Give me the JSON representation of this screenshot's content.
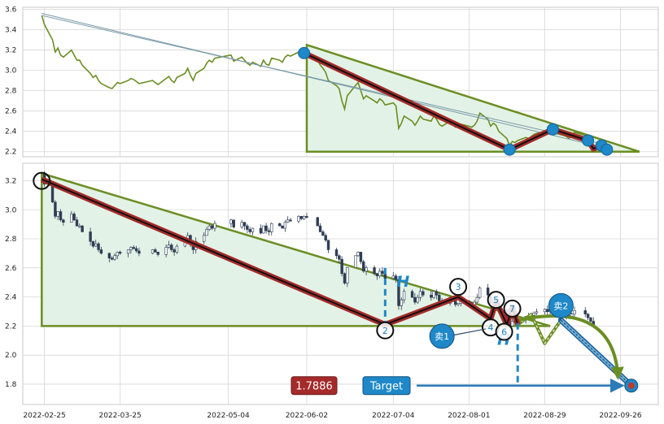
{
  "colors": {
    "triangle_line": "#6b8e23",
    "triangle_fill": "#e3f2e6",
    "wave_outer": "#a52a2a",
    "wave_inner": "#111111",
    "marker_blue": "#1e88c8",
    "price_line": "#6b8e23",
    "candle": "#2f3e55",
    "grid": "#d6d6d6",
    "arrow_blue": "#2b7bb9",
    "price_box": "#a52a2a"
  },
  "chart_data": [
    {
      "type": "line",
      "panel": "top",
      "ylim": [
        2.15,
        3.62
      ],
      "yticks": [
        2.2,
        2.4,
        2.6,
        2.8,
        3.0,
        3.2,
        3.4,
        3.6
      ],
      "xlim": [
        "2022-02-17",
        "2022-10-10"
      ],
      "price_series": [
        [
          "2022-02-24",
          3.54
        ],
        [
          "2022-02-25",
          3.45
        ],
        [
          "2022-02-28",
          3.3
        ],
        [
          "2022-03-01",
          3.18
        ],
        [
          "2022-03-02",
          3.22
        ],
        [
          "2022-03-03",
          3.15
        ],
        [
          "2022-03-04",
          3.13
        ],
        [
          "2022-03-07",
          3.2
        ],
        [
          "2022-03-08",
          3.15
        ],
        [
          "2022-03-09",
          3.1
        ],
        [
          "2022-03-10",
          3.1
        ],
        [
          "2022-03-11",
          3.05
        ],
        [
          "2022-03-14",
          2.97
        ],
        [
          "2022-03-15",
          2.93
        ],
        [
          "2022-03-16",
          2.95
        ],
        [
          "2022-03-17",
          2.9
        ],
        [
          "2022-03-18",
          2.87
        ],
        [
          "2022-03-21",
          2.83
        ],
        [
          "2022-03-22",
          2.82
        ],
        [
          "2022-03-23",
          2.85
        ],
        [
          "2022-03-24",
          2.88
        ],
        [
          "2022-03-25",
          2.87
        ],
        [
          "2022-03-28",
          2.9
        ],
        [
          "2022-03-29",
          2.92
        ],
        [
          "2022-03-30",
          2.91
        ],
        [
          "2022-03-31",
          2.89
        ],
        [
          "2022-04-01",
          2.87
        ],
        [
          "2022-04-06",
          2.9
        ],
        [
          "2022-04-07",
          2.88
        ],
        [
          "2022-04-08",
          2.86
        ],
        [
          "2022-04-11",
          2.92
        ],
        [
          "2022-04-12",
          2.94
        ],
        [
          "2022-04-13",
          2.9
        ],
        [
          "2022-04-14",
          2.88
        ],
        [
          "2022-04-15",
          2.93
        ],
        [
          "2022-04-18",
          2.97
        ],
        [
          "2022-04-19",
          3.02
        ],
        [
          "2022-04-20",
          2.95
        ],
        [
          "2022-04-21",
          2.9
        ],
        [
          "2022-04-22",
          2.97
        ],
        [
          "2022-04-25",
          3.02
        ],
        [
          "2022-04-26",
          3.07
        ],
        [
          "2022-04-27",
          3.1
        ],
        [
          "2022-04-28",
          3.08
        ],
        [
          "2022-04-29",
          3.12
        ],
        [
          "2022-05-05",
          3.15
        ],
        [
          "2022-05-06",
          3.09
        ],
        [
          "2022-05-09",
          3.13
        ],
        [
          "2022-05-10",
          3.1
        ],
        [
          "2022-05-11",
          3.07
        ],
        [
          "2022-05-12",
          3.05
        ],
        [
          "2022-05-13",
          3.08
        ],
        [
          "2022-05-16",
          3.04
        ],
        [
          "2022-05-17",
          3.1
        ],
        [
          "2022-05-18",
          3.06
        ],
        [
          "2022-05-19",
          3.05
        ],
        [
          "2022-05-20",
          3.12
        ],
        [
          "2022-05-23",
          3.1
        ],
        [
          "2022-05-24",
          3.08
        ],
        [
          "2022-05-25",
          3.13
        ],
        [
          "2022-05-26",
          3.15
        ],
        [
          "2022-05-27",
          3.14
        ],
        [
          "2022-05-30",
          3.18
        ],
        [
          "2022-05-31",
          3.16
        ],
        [
          "2022-06-01",
          3.18
        ],
        [
          "2022-06-02",
          3.17
        ],
        [
          "2022-06-06",
          3.1
        ],
        [
          "2022-06-07",
          3.05
        ],
        [
          "2022-06-08",
          3.02
        ],
        [
          "2022-06-09",
          2.98
        ],
        [
          "2022-06-10",
          2.9
        ],
        [
          "2022-06-13",
          2.85
        ],
        [
          "2022-06-14",
          2.82
        ],
        [
          "2022-06-15",
          2.7
        ],
        [
          "2022-06-16",
          2.62
        ],
        [
          "2022-06-17",
          2.75
        ],
        [
          "2022-06-20",
          2.85
        ],
        [
          "2022-06-21",
          2.88
        ],
        [
          "2022-06-22",
          2.8
        ],
        [
          "2022-06-23",
          2.72
        ],
        [
          "2022-06-24",
          2.75
        ],
        [
          "2022-06-27",
          2.7
        ],
        [
          "2022-06-28",
          2.68
        ],
        [
          "2022-06-29",
          2.72
        ],
        [
          "2022-06-30",
          2.7
        ],
        [
          "2022-07-01",
          2.66
        ],
        [
          "2022-07-04",
          2.68
        ],
        [
          "2022-07-05",
          2.65
        ],
        [
          "2022-07-06",
          2.43
        ],
        [
          "2022-07-07",
          2.48
        ],
        [
          "2022-07-08",
          2.55
        ],
        [
          "2022-07-11",
          2.5
        ],
        [
          "2022-07-12",
          2.46
        ],
        [
          "2022-07-13",
          2.5
        ],
        [
          "2022-07-14",
          2.55
        ],
        [
          "2022-07-15",
          2.52
        ],
        [
          "2022-07-18",
          2.5
        ],
        [
          "2022-07-19",
          2.55
        ],
        [
          "2022-07-20",
          2.52
        ],
        [
          "2022-07-21",
          2.47
        ],
        [
          "2022-07-22",
          2.45
        ],
        [
          "2022-07-25",
          2.5
        ],
        [
          "2022-07-26",
          2.47
        ],
        [
          "2022-07-27",
          2.44
        ],
        [
          "2022-07-28",
          2.45
        ],
        [
          "2022-07-29",
          2.47
        ],
        [
          "2022-08-01",
          2.45
        ],
        [
          "2022-08-02",
          2.44
        ],
        [
          "2022-08-03",
          2.46
        ],
        [
          "2022-08-04",
          2.5
        ],
        [
          "2022-08-05",
          2.58
        ],
        [
          "2022-08-08",
          2.52
        ],
        [
          "2022-08-09",
          2.45
        ],
        [
          "2022-08-10",
          2.48
        ],
        [
          "2022-08-11",
          2.46
        ],
        [
          "2022-08-12",
          2.4
        ],
        [
          "2022-08-15",
          2.33
        ],
        [
          "2022-08-16",
          2.26
        ],
        [
          "2022-08-17",
          2.3
        ],
        [
          "2022-08-18",
          2.29
        ],
        [
          "2022-08-19",
          2.31
        ],
        [
          "2022-08-22",
          2.34
        ],
        [
          "2022-08-23",
          2.33
        ],
        [
          "2022-08-24",
          2.35
        ],
        [
          "2022-08-25",
          2.37
        ],
        [
          "2022-08-26",
          2.38
        ],
        [
          "2022-08-29",
          2.4
        ],
        [
          "2022-08-30",
          2.38
        ],
        [
          "2022-08-31",
          2.42
        ],
        [
          "2022-09-01",
          2.4
        ],
        [
          "2022-09-02",
          2.38
        ],
        [
          "2022-09-05",
          2.36
        ],
        [
          "2022-09-06",
          2.35
        ],
        [
          "2022-09-07",
          2.33
        ],
        [
          "2022-09-08",
          2.36
        ],
        [
          "2022-09-09",
          2.39
        ],
        [
          "2022-09-13",
          2.36
        ],
        [
          "2022-09-14",
          2.33
        ],
        [
          "2022-09-15",
          2.3
        ],
        [
          "2022-09-16",
          2.27
        ]
      ],
      "triangle": [
        [
          "2022-06-02",
          3.25
        ],
        [
          "2022-10-03",
          2.2
        ],
        [
          "2022-06-02",
          2.2
        ]
      ],
      "wave_points": [
        [
          "2022-06-01",
          3.17
        ],
        [
          "2022-08-16",
          2.22
        ],
        [
          "2022-09-01",
          2.42
        ],
        [
          "2022-09-14",
          2.31
        ],
        [
          "2022-09-16",
          2.23
        ],
        [
          "2022-09-19",
          2.26
        ],
        [
          "2022-09-21",
          2.22
        ]
      ],
      "trend_line_1": [
        [
          "2022-02-24",
          3.56
        ],
        [
          "2022-09-20",
          2.24
        ]
      ],
      "trend_line_2": [
        [
          "2022-02-24",
          3.54
        ],
        [
          "2022-09-22",
          2.26
        ]
      ]
    },
    {
      "type": "candlestick",
      "panel": "bottom",
      "ylim": [
        1.66,
        3.32
      ],
      "yticks": [
        1.8,
        2.0,
        2.2,
        2.4,
        2.6,
        2.8,
        3.0,
        3.2
      ],
      "xlim": [
        "2022-02-17",
        "2022-10-10"
      ],
      "xticks": [
        "2022-02-25",
        "2022-03-25",
        "2022-05-04",
        "2022-06-02",
        "2022-07-04",
        "2022-08-01",
        "2022-08-29",
        "2022-09-26"
      ],
      "triangle": [
        [
          "2022-02-24",
          3.25
        ],
        [
          "2022-08-31",
          2.2
        ],
        [
          "2022-02-24",
          2.2
        ]
      ],
      "wave_points": [
        [
          "2022-02-24",
          3.21
        ],
        [
          "2022-07-01",
          2.21
        ],
        [
          "2022-07-28",
          2.4
        ],
        [
          "2022-08-09",
          2.25
        ],
        [
          "2022-08-11",
          2.37
        ],
        [
          "2022-08-15",
          2.21
        ],
        [
          "2022-08-17",
          2.33
        ],
        [
          "2022-08-19",
          2.21
        ]
      ],
      "wave_labels": [
        {
          "label": "2",
          "date": "2022-07-01",
          "value": 2.17
        },
        {
          "label": "3",
          "date": "2022-07-28",
          "value": 2.47
        },
        {
          "label": "4",
          "date": "2022-08-09",
          "value": 2.19
        },
        {
          "label": "5",
          "date": "2022-08-11",
          "value": 2.38
        },
        {
          "label": "6",
          "date": "2022-08-14",
          "value": 2.16
        },
        {
          "label": "7",
          "date": "2022-08-17",
          "value": 2.32
        }
      ],
      "H_label": "H",
      "sell_points": [
        {
          "label": "卖1",
          "date": "2022-07-22",
          "value": 2.13
        },
        {
          "label": "卖2",
          "date": "2022-09-04",
          "value": 2.34
        }
      ],
      "projection_zigzag": [
        [
          "2022-08-19",
          2.21
        ],
        [
          "2022-08-24",
          2.28
        ],
        [
          "2022-08-29",
          2.08
        ],
        [
          "2022-09-04",
          2.24
        ]
      ],
      "projection_arc": [
        [
          "2022-08-19",
          2.24
        ],
        [
          "2022-09-26",
          1.79
        ]
      ],
      "target_point": [
        "2022-09-30",
        1.79
      ],
      "target_label": "Target",
      "target_value_label": "1.7886",
      "target_value": 1.7886
    }
  ]
}
